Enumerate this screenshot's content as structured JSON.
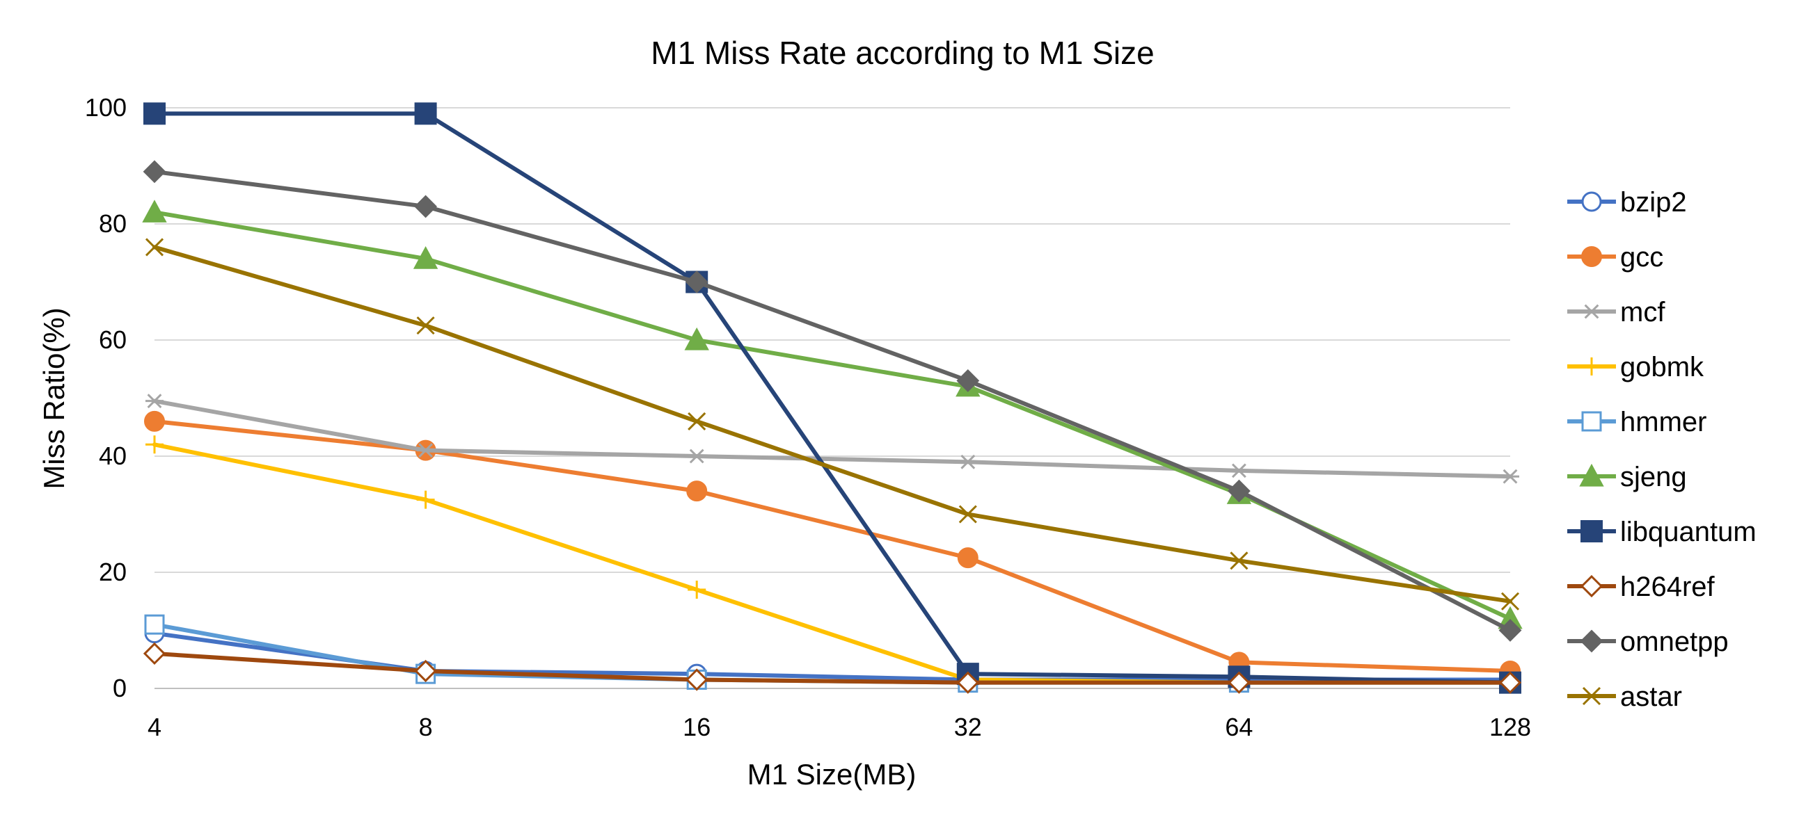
{
  "chart_data": {
    "type": "line",
    "title": "M1 Miss Rate according to M1 Size",
    "xlabel": "M1 Size(MB)",
    "ylabel": "Miss Ratio(%)",
    "categories": [
      "4",
      "8",
      "16",
      "32",
      "64",
      "128"
    ],
    "ylim": [
      0,
      100
    ],
    "yticks": [
      "0",
      "20",
      "40",
      "60",
      "80",
      "100"
    ],
    "grid": true,
    "legend_position": "right",
    "series": [
      {
        "name": "bzip2",
        "color": "#4472C4",
        "marker": "open-circle",
        "values": [
          9.5,
          3,
          2.5,
          1.5,
          1.5,
          1.5
        ]
      },
      {
        "name": "gcc",
        "color": "#ED7D31",
        "marker": "filled-circle",
        "values": [
          46,
          41,
          34,
          22.5,
          4.5,
          3
        ]
      },
      {
        "name": "mcf",
        "color": "#A5A5A5",
        "marker": "asterisk",
        "values": [
          49.5,
          41,
          40,
          39,
          37.5,
          36.5
        ]
      },
      {
        "name": "gobmk",
        "color": "#FFC000",
        "marker": "plus",
        "values": [
          42,
          32.5,
          17,
          1.5,
          1,
          1
        ]
      },
      {
        "name": "hmmer",
        "color": "#5B9BD5",
        "marker": "open-square",
        "values": [
          11,
          2.5,
          1.5,
          1,
          1,
          1
        ]
      },
      {
        "name": "sjeng",
        "color": "#70AD47",
        "marker": "filled-triangle",
        "values": [
          82,
          74,
          60,
          52,
          33.5,
          12
        ]
      },
      {
        "name": "libquantum",
        "color": "#264478",
        "marker": "filled-square",
        "values": [
          99,
          99,
          70,
          2.5,
          2,
          1
        ]
      },
      {
        "name": "h264ref",
        "color": "#9E480E",
        "marker": "open-diamond",
        "values": [
          6,
          3,
          1.5,
          1,
          1,
          1
        ]
      },
      {
        "name": "omnetpp",
        "color": "#636363",
        "marker": "filled-diamond",
        "values": [
          89,
          83,
          70,
          53,
          34,
          10
        ]
      },
      {
        "name": "astar",
        "color": "#997300",
        "marker": "x",
        "values": [
          76,
          62.5,
          46,
          30,
          22,
          15
        ]
      }
    ]
  }
}
